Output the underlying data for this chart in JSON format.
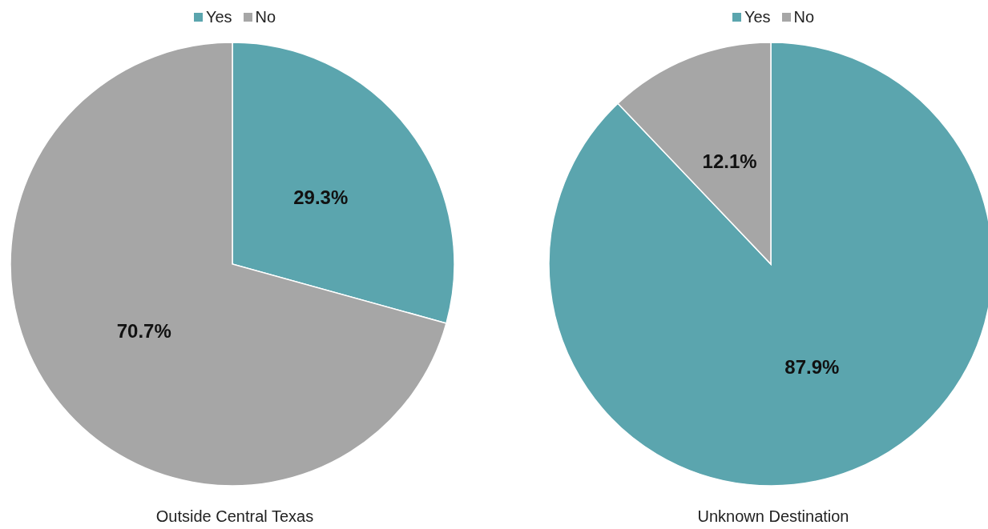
{
  "chart_data": [
    {
      "type": "pie",
      "title": "Outside Central Texas",
      "categories": [
        "Yes",
        "No"
      ],
      "values": [
        29.3,
        70.7
      ],
      "colors": [
        "#5ba5ae",
        "#a6a6a6"
      ],
      "value_labels": [
        "29.3%",
        "70.7%"
      ],
      "legend": "top"
    },
    {
      "type": "pie",
      "title": "Unknown Destination",
      "categories": [
        "Yes",
        "No"
      ],
      "values": [
        87.9,
        12.1
      ],
      "colors": [
        "#5ba5ae",
        "#a6a6a6"
      ],
      "value_labels": [
        "87.9%",
        "12.1%"
      ],
      "legend": "top"
    }
  ]
}
